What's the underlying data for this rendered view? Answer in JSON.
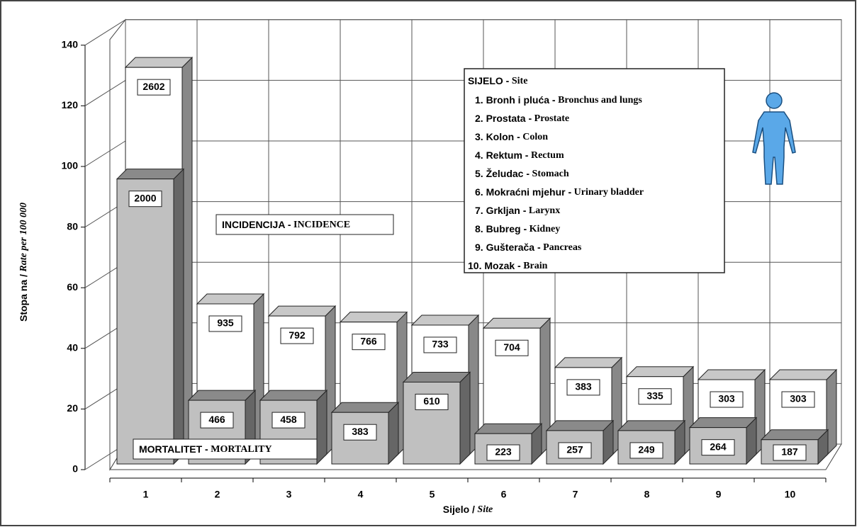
{
  "chart_data": {
    "type": "bar3d",
    "y_label": "Stopa na / Rate per 100 000",
    "x_label": "Sijelo / Site",
    "categories": [
      "1",
      "2",
      "3",
      "4",
      "5",
      "6",
      "7",
      "8",
      "9",
      "10"
    ],
    "series": [
      {
        "name": "INCIDENCIJA - INCIDENCE",
        "color": "#ffffff",
        "values": [
          128,
          50,
          46,
          44,
          43,
          42,
          29,
          26,
          25,
          25
        ],
        "counts": [
          2602,
          935,
          792,
          766,
          733,
          704,
          383,
          335,
          303,
          303
        ]
      },
      {
        "name": "MORTALITET - MORTALITY",
        "color": "#c0c0c0",
        "values": [
          94,
          21,
          21,
          17,
          27,
          10,
          11,
          11,
          12,
          8
        ],
        "counts": [
          2000,
          466,
          458,
          383,
          610,
          223,
          257,
          249,
          264,
          187
        ]
      }
    ],
    "ylim": [
      0,
      140
    ],
    "yticks": [
      0,
      20,
      40,
      60,
      80,
      100,
      120,
      140
    ],
    "grid": true,
    "legend": {
      "title": "SIJELO - Site",
      "items": [
        "1. Bronh i pluća - Bronchus and lungs",
        "2. Prostata - Prostate",
        "3. Kolon - Colon",
        "4. Rektum - Rectum",
        "5. Želudac - Stomach",
        "6. Mokraćni mjehur - Urinary bladder",
        "7. Grkljan - Larynx",
        "8. Bubreg - Kidney",
        "9. Gušterača - Pancreas",
        "10. Mozak - Brain"
      ]
    }
  }
}
